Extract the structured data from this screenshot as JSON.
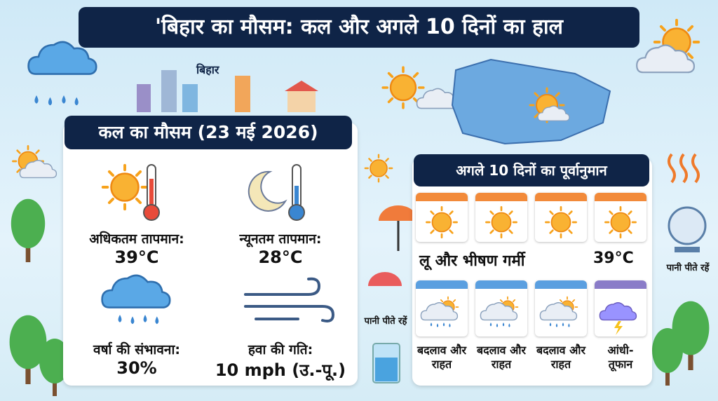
{
  "header": {
    "title": "'बिहार का मौसम: कल और अगले 10 दिनों का हाल",
    "map_label": "बिहार"
  },
  "tomorrow": {
    "title": "कल का मौसम (23 मई 2026)",
    "stats": [
      {
        "label": "अधिकतम तापमान:",
        "value": "39°C"
      },
      {
        "label": "न्यूनतम तापमान:",
        "value": "28°C"
      },
      {
        "label": "वर्षा की संभावना:",
        "value": "30%"
      },
      {
        "label": "हवा की गति:",
        "value": "10 mph (उ.-पू.)"
      }
    ]
  },
  "forecast": {
    "title": "अगले 10 दिनों का पूर्वानुमान",
    "hot_caption": "लू और भीषण गर्मी",
    "hot_temp": "39°C",
    "later": [
      "बदलाव और राहत",
      "बदलाव और राहत",
      "बदलाव और राहत",
      "आंधी-तूफान"
    ]
  },
  "tips": [
    "पानी पीते रहें",
    "पानी पीते रहें"
  ]
}
